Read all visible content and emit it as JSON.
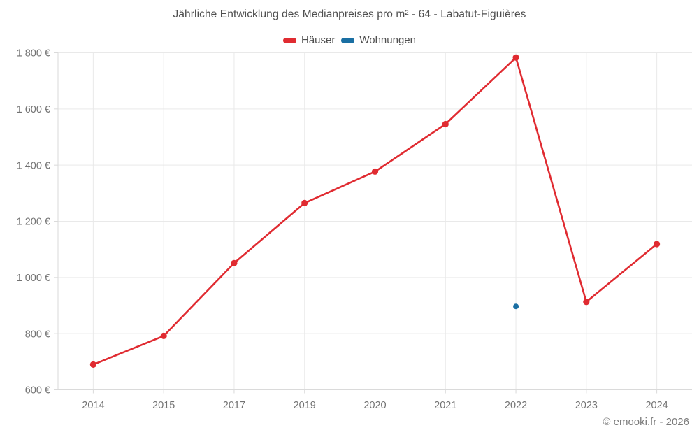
{
  "title": "Jährliche Entwicklung des Medianpreises pro m² - 64 - Labatut-Figuières",
  "legend": {
    "items": [
      {
        "label": "Häuser",
        "color": "#e02b31"
      },
      {
        "label": "Wohnungen",
        "color": "#1a6fa3"
      }
    ]
  },
  "copyright": "© emooki.fr - 2026",
  "chart_data": {
    "type": "line",
    "title": "Jährliche Entwicklung des Medianpreises pro m² - 64 - Labatut-Figuières",
    "categories": [
      "2014",
      "2015",
      "2017",
      "2019",
      "2020",
      "2021",
      "2022",
      "2023",
      "2024"
    ],
    "series": [
      {
        "name": "Häuser",
        "color": "#e02b31",
        "marker_radius": 4.6,
        "line_width": 2.6,
        "values": [
          690,
          792,
          1051,
          1265,
          1377,
          1546,
          1783,
          913,
          1119
        ]
      },
      {
        "name": "Wohnungen",
        "color": "#1a6fa3",
        "marker_radius": 4,
        "line_width": 2.6,
        "values": [
          null,
          null,
          null,
          null,
          null,
          null,
          897,
          null,
          null
        ]
      }
    ],
    "xlabel": "",
    "ylabel": "",
    "ylim": [
      600,
      1800
    ],
    "ytick_values": [
      600,
      800,
      1000,
      1200,
      1400,
      1600,
      1800
    ],
    "ytick_labels": [
      "600 €",
      "800 €",
      "1 000 €",
      "1 200 €",
      "1 400 €",
      "1 600 €",
      "1 800 €"
    ],
    "grid": true,
    "legend_position": "top",
    "unit": "€"
  },
  "colors": {
    "grid": "#e9e9e9",
    "axis": "#dadada",
    "tick_text": "#737373",
    "title_text": "#4f4f4f",
    "copyright_text": "#7a7a7a"
  }
}
